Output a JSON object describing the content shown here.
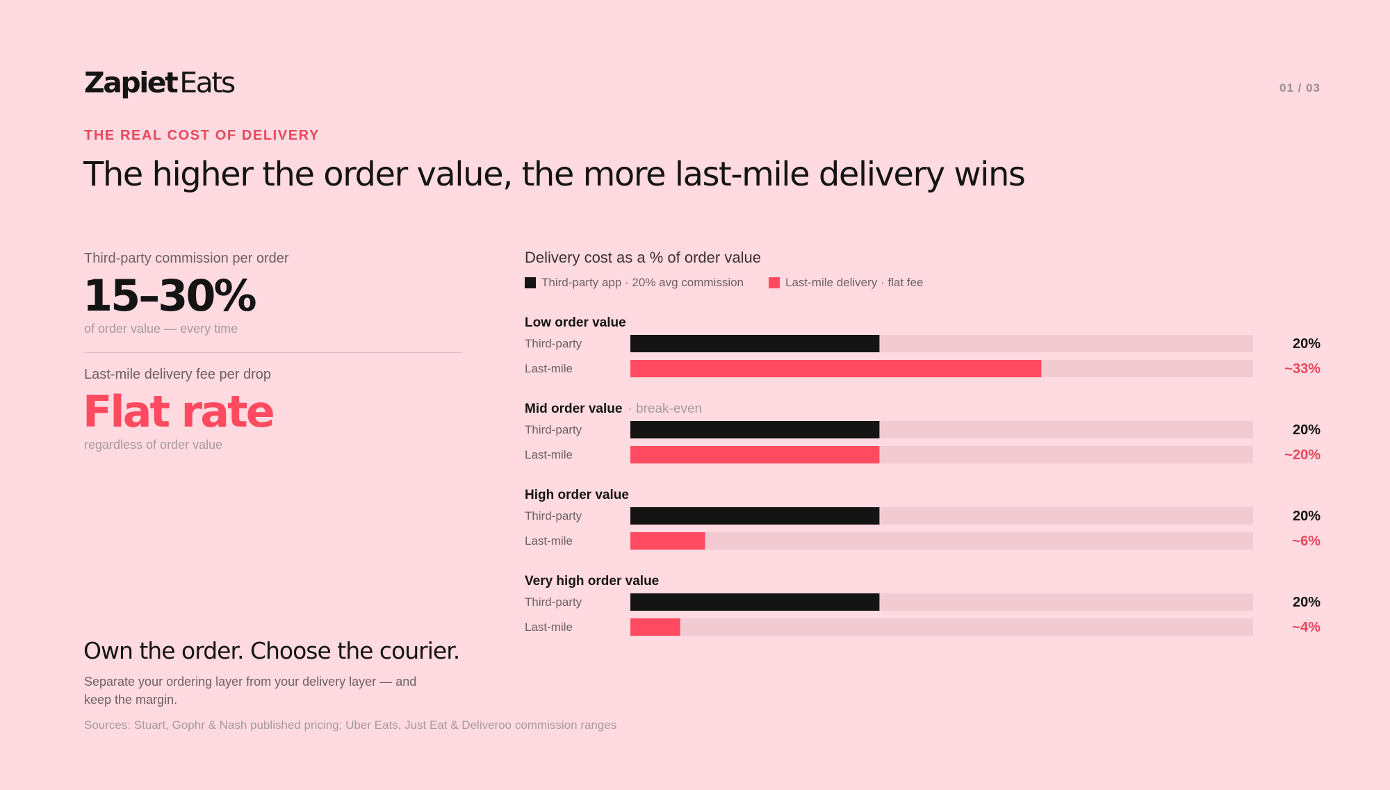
{
  "brand": {
    "name_bold": "Zapiet",
    "name_light": "Eats"
  },
  "page_indicator": "01 / 03",
  "eyebrow": "THE REAL COST OF DELIVERY",
  "headline": "The higher the order value, the more last-mile delivery wins",
  "stats": [
    {
      "label": "Third-party commission per order",
      "value": "15–30%",
      "sub": "of order value — every time",
      "color": "#141414"
    },
    {
      "label": "Last-mile delivery fee per drop",
      "value": "Flat rate",
      "sub": "regardless of order value",
      "color": "#ff4a5f"
    }
  ],
  "tagline": "Own the order. Choose the courier.",
  "tagline_sub": "Separate your ordering layer from your delivery layer — and keep the margin.",
  "sources": "Sources: Stuart, Gophr & Nash published pricing; Uber Eats, Just Eat & Deliveroo commission ranges",
  "colors": {
    "third_party": "#141414",
    "last_mile": "#ff4a5f",
    "track": "#f2cbd2",
    "accent": "#e8475e"
  },
  "chart_data": {
    "type": "bar",
    "orientation": "horizontal",
    "title": "Delivery cost as a % of order value",
    "legend": [
      {
        "name": "Third-party app · 20% avg commission",
        "color": "#141414"
      },
      {
        "name": "Last-mile delivery · flat fee",
        "color": "#ff4a5f"
      }
    ],
    "legend_position": "top-left",
    "xlim": [
      0,
      50
    ],
    "grid": false,
    "groups": [
      {
        "category": "Low order value",
        "note": "",
        "bars": [
          {
            "label": "Third-party",
            "value": 20,
            "value_label": "20%",
            "series": "third_party"
          },
          {
            "label": "Last-mile",
            "value": 33,
            "value_label": "~33%",
            "series": "last_mile"
          }
        ]
      },
      {
        "category": "Mid order value",
        "note": "· break-even",
        "bars": [
          {
            "label": "Third-party",
            "value": 20,
            "value_label": "20%",
            "series": "third_party"
          },
          {
            "label": "Last-mile",
            "value": 20,
            "value_label": "~20%",
            "series": "last_mile"
          }
        ]
      },
      {
        "category": "High order value",
        "note": "",
        "bars": [
          {
            "label": "Third-party",
            "value": 20,
            "value_label": "20%",
            "series": "third_party"
          },
          {
            "label": "Last-mile",
            "value": 6,
            "value_label": "~6%",
            "series": "last_mile"
          }
        ]
      },
      {
        "category": "Very high order value",
        "note": "",
        "bars": [
          {
            "label": "Third-party",
            "value": 20,
            "value_label": "20%",
            "series": "third_party"
          },
          {
            "label": "Last-mile",
            "value": 4,
            "value_label": "~4%",
            "series": "last_mile"
          }
        ]
      }
    ]
  }
}
